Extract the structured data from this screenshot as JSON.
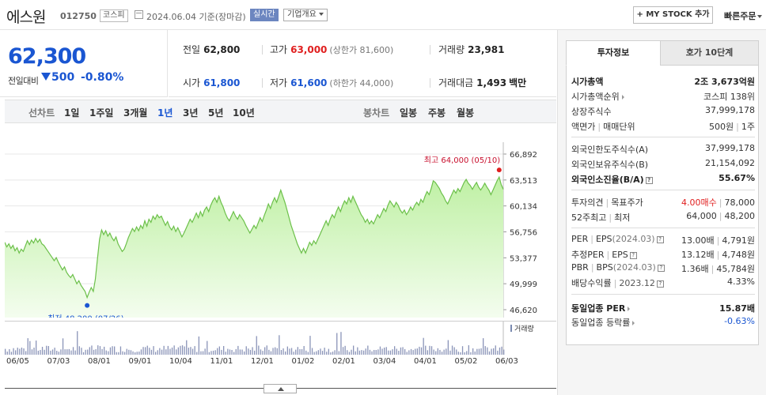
{
  "header": {
    "company": "에스원",
    "code": "012750",
    "market": "코스피",
    "date": "2024.06.04 기준(장마감)",
    "realtime": "실시간",
    "corp_overview": "기업개요",
    "mystock": "+ MY STOCK 추가",
    "quick_order": "빠른주문"
  },
  "price": {
    "current": "62,300",
    "change_label": "전일대비",
    "change": "500",
    "change_pct": "-0.80%"
  },
  "stats": {
    "prev_label": "전일",
    "prev": "62,800",
    "high_label": "고가",
    "high": "63,000",
    "upper_limit": "(상한가 81,600)",
    "volume_label": "거래량",
    "volume": "23,981",
    "open_label": "시가",
    "open": "61,800",
    "low_label": "저가",
    "low": "61,600",
    "lower_limit": "(하한가 44,000)",
    "amount_label": "거래대금",
    "amount": "1,493",
    "amount_unit": "백만"
  },
  "period_tabs": {
    "line_label": "선차트",
    "line": [
      "1일",
      "1주일",
      "3개월",
      "1년",
      "3년",
      "5년",
      "10년"
    ],
    "active": "1년",
    "candle_label": "봉차트",
    "candle": [
      "일봉",
      "주봉",
      "월봉"
    ]
  },
  "chart_data": {
    "type": "area",
    "y_ticks": [
      "66,892",
      "63,513",
      "60,134",
      "56,756",
      "53,377",
      "49,999",
      "46,620"
    ],
    "ylim": [
      46620,
      66892
    ],
    "x_ticks": [
      "06/05",
      "07/03",
      "08/01",
      "09/01",
      "10/04",
      "11/01",
      "12/01",
      "01/02",
      "02/01",
      "03/04",
      "04/01",
      "05/02",
      "06/03"
    ],
    "high_annotation": "최고 64,000 (05/10)",
    "low_annotation": "최저 48,200 (07/26)",
    "volume_label": "거래량",
    "series": [
      {
        "values": [
          55400,
          54800,
          55200,
          54600,
          55000,
          54300,
          54700,
          54000,
          54500,
          54200,
          54900,
          55600,
          55100,
          55700,
          55300,
          55900,
          55400,
          55800,
          55200,
          55000,
          54600,
          54200,
          53800,
          53400,
          53000,
          53400,
          52800,
          52300,
          51800,
          52200,
          51500,
          51100,
          50800,
          51200,
          50600,
          50000,
          50400,
          49800,
          49400,
          49000,
          48200,
          48900,
          49500,
          49000,
          50600,
          53200,
          55800,
          57000,
          56400,
          56900,
          56200,
          56600,
          56000,
          55600,
          56100,
          55200,
          54700,
          54200,
          54500,
          55200,
          56000,
          56600,
          57200,
          56800,
          57400,
          56900,
          57600,
          57200,
          58200,
          57500,
          58400,
          58000,
          58800,
          58400,
          59000,
          58600,
          58800,
          58200,
          57600,
          58100,
          57400,
          57000,
          57500,
          56800,
          57300,
          56700,
          56100,
          56600,
          57200,
          57800,
          58400,
          58000,
          58600,
          59200,
          58600,
          59400,
          58800,
          59600,
          60000,
          59400,
          60200,
          60800,
          61200,
          60600,
          61400,
          60600,
          60000,
          59200,
          58600,
          58200,
          58800,
          59400,
          58800,
          58400,
          59000,
          58600,
          58200,
          57600,
          57100,
          56600,
          57100,
          57600,
          57200,
          57900,
          58600,
          58100,
          58900,
          59600,
          60400,
          59800,
          60600,
          61200,
          60600,
          61400,
          62200,
          61400,
          60600,
          59600,
          58600,
          57600,
          56800,
          56000,
          55200,
          54600,
          54000,
          54600,
          54000,
          54700,
          55400,
          55000,
          55600,
          55200,
          55800,
          56400,
          57000,
          57600,
          58200,
          57600,
          58400,
          59000,
          58600,
          59400,
          60000,
          59400,
          60200,
          60800,
          60400,
          61200,
          60600,
          61400,
          60800,
          60200,
          59600,
          59000,
          58600,
          58000,
          58400,
          57800,
          58200,
          57800,
          58400,
          59000,
          58600,
          59200,
          59800,
          59400,
          60200,
          60800,
          60400,
          60000,
          60600,
          60200,
          59600,
          59200,
          59600,
          59000,
          59400,
          60000,
          59600,
          60200,
          60600,
          60200,
          61000,
          60600,
          61400,
          62000,
          61600,
          62400,
          63400,
          63200,
          62800,
          62400,
          61800,
          61400,
          60800,
          60400,
          61000,
          61600,
          62200,
          61800,
          62400,
          62000,
          62600,
          63200,
          63600,
          63100,
          62800,
          62300,
          62800,
          63200,
          62600,
          62200,
          62600,
          63100,
          62600,
          62200,
          61600,
          62200,
          62800,
          63400,
          63900,
          62900,
          62300
        ]
      }
    ]
  },
  "right": {
    "tab_active": "투자정보",
    "tab_other": "호가 10단계",
    "market_cap_label": "시가총액",
    "market_cap": "2조 3,673억원",
    "market_cap_rank_label": "시가총액순위",
    "market_cap_rank": "코스피 138위",
    "shares_label": "상장주식수",
    "shares": "37,999,178",
    "par_label": "액면가",
    "trade_unit_label": "매매단위",
    "par_value": "500원",
    "trade_unit": "1주",
    "foreign_limit_label": "외국인한도주식수(A)",
    "foreign_limit": "37,999,178",
    "foreign_hold_label": "외국인보유주식수(B)",
    "foreign_hold": "21,154,092",
    "foreign_ratio_label": "외국인소진율(B/A)",
    "foreign_ratio": "55.67%",
    "opinion_label": "투자의견",
    "target_label": "목표주가",
    "opinion": "4.00매수",
    "target": "78,000",
    "wk52_label": "52주최고",
    "wk52_low_label": "최저",
    "wk52_high": "64,000",
    "wk52_low": "48,200",
    "per_label": "PER",
    "eps_label": "EPS",
    "eps_date": "(2024.03)",
    "per": "13.00배",
    "eps": "4,791원",
    "est_per_label": "추정PER",
    "est_eps_label": "EPS",
    "est_per": "13.12배",
    "est_eps": "4,748원",
    "pbr_label": "PBR",
    "bps_label": "BPS",
    "bps_date": "(2024.03)",
    "pbr": "1.36배",
    "bps": "45,784원",
    "div_label": "배당수익률",
    "div_date": "2023.12",
    "div": "4.33%",
    "ind_per_label": "동일업종 PER",
    "ind_per": "15.87배",
    "ind_chg_label": "동일업종 등락률",
    "ind_chg": "-0.63%"
  }
}
